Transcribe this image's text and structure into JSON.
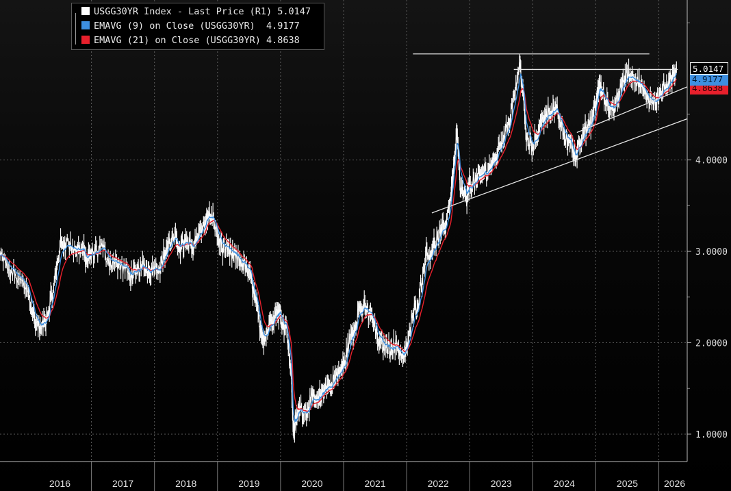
{
  "chart_data": {
    "type": "line",
    "title": "",
    "xlabel": "",
    "ylabel": "",
    "x_tick_labels": [
      "2016",
      "2017",
      "2018",
      "2019",
      "2020",
      "2021",
      "2022",
      "2023",
      "2024",
      "2025",
      "2026"
    ],
    "y_tick_labels": [
      "1.0000",
      "2.0000",
      "3.0000",
      "4.0000"
    ],
    "y_ticks": [
      1.0,
      2.0,
      3.0,
      4.0
    ],
    "xlim": [
      2015.55,
      2026.45
    ],
    "ylim": [
      0.7,
      5.75
    ],
    "grid": true,
    "legend_position": "top-left",
    "axis_side": "right",
    "series": [
      {
        "name": "USGG30YR Index - Last Price (R1)",
        "last_value": "5.0147",
        "color": "#ffffff",
        "x": [
          2015.55,
          2015.7,
          2015.85,
          2016.0,
          2016.1,
          2016.2,
          2016.3,
          2016.4,
          2016.5,
          2016.6,
          2016.75,
          2016.85,
          2016.92,
          2017.0,
          2017.15,
          2017.3,
          2017.45,
          2017.6,
          2017.7,
          2017.8,
          2017.9,
          2018.0,
          2018.1,
          2018.2,
          2018.3,
          2018.4,
          2018.5,
          2018.6,
          2018.7,
          2018.8,
          2018.85,
          2018.95,
          2019.05,
          2019.15,
          2019.25,
          2019.35,
          2019.45,
          2019.55,
          2019.6,
          2019.68,
          2019.75,
          2019.85,
          2019.95,
          2020.0,
          2020.1,
          2020.17,
          2020.2,
          2020.25,
          2020.3,
          2020.4,
          2020.5,
          2020.6,
          2020.65,
          2020.7,
          2020.8,
          2020.9,
          2021.0,
          2021.1,
          2021.17,
          2021.25,
          2021.35,
          2021.45,
          2021.55,
          2021.65,
          2021.75,
          2021.85,
          2021.95,
          2022.0,
          2022.1,
          2022.2,
          2022.3,
          2022.4,
          2022.5,
          2022.6,
          2022.7,
          2022.75,
          2022.8,
          2022.85,
          2022.95,
          2023.0,
          2023.1,
          2023.2,
          2023.3,
          2023.4,
          2023.5,
          2023.6,
          2023.7,
          2023.8,
          2023.85,
          2023.9,
          2024.0,
          2024.1,
          2024.2,
          2024.3,
          2024.4,
          2024.5,
          2024.6,
          2024.67,
          2024.72,
          2024.8,
          2024.9,
          2025.0,
          2025.05,
          2025.1,
          2025.2,
          2025.3,
          2025.4,
          2025.5,
          2025.6,
          2025.7,
          2025.8,
          2025.9,
          2026.0,
          2026.1,
          2026.2,
          2026.28
        ],
        "y": [
          2.95,
          2.8,
          2.7,
          2.55,
          2.25,
          2.15,
          2.3,
          2.6,
          3.05,
          3.1,
          3.0,
          3.05,
          2.9,
          2.95,
          3.05,
          2.9,
          2.85,
          2.75,
          2.75,
          2.85,
          2.8,
          2.82,
          2.85,
          3.05,
          3.15,
          3.05,
          3.1,
          3.05,
          3.2,
          3.3,
          3.4,
          3.3,
          3.05,
          3.0,
          2.95,
          2.9,
          2.85,
          2.65,
          2.45,
          2.15,
          2.05,
          2.25,
          2.35,
          2.3,
          2.15,
          1.65,
          1.05,
          1.15,
          1.3,
          1.25,
          1.4,
          1.35,
          1.45,
          1.5,
          1.55,
          1.65,
          1.75,
          2.05,
          2.15,
          2.4,
          2.35,
          2.3,
          2.0,
          1.95,
          1.95,
          1.95,
          1.85,
          1.95,
          2.3,
          2.5,
          2.95,
          3.0,
          3.15,
          3.25,
          3.6,
          3.95,
          4.3,
          3.7,
          3.55,
          3.75,
          3.75,
          3.85,
          3.9,
          4.0,
          4.2,
          4.35,
          4.7,
          5.05,
          4.7,
          4.2,
          4.15,
          4.35,
          4.5,
          4.55,
          4.5,
          4.25,
          4.2,
          4.0,
          4.15,
          4.3,
          4.35,
          4.6,
          4.8,
          4.75,
          4.55,
          4.6,
          4.8,
          4.95,
          4.9,
          4.8,
          4.7,
          4.65,
          4.7,
          4.8,
          4.85,
          5.0147
        ]
      },
      {
        "name": "EMAVG (9) on Close (USGG30YR)",
        "last_value": "4.9177",
        "color": "#3d8fe0"
      },
      {
        "name": "EMAVG (21) on Close (USGG30YR)",
        "last_value": "4.8638",
        "color": "#e8202c"
      }
    ],
    "trendlines": [
      {
        "x": [
          2022.1,
          2025.85
        ],
        "y": [
          5.16,
          5.16
        ]
      },
      {
        "x": [
          2023.7,
          2026.3
        ],
        "y": [
          4.99,
          4.99
        ]
      },
      {
        "x": [
          2022.4,
          2026.45
        ],
        "y": [
          3.42,
          4.45
        ]
      },
      {
        "x": [
          2024.7,
          2026.45
        ],
        "y": [
          4.3,
          4.8
        ]
      }
    ]
  }
}
